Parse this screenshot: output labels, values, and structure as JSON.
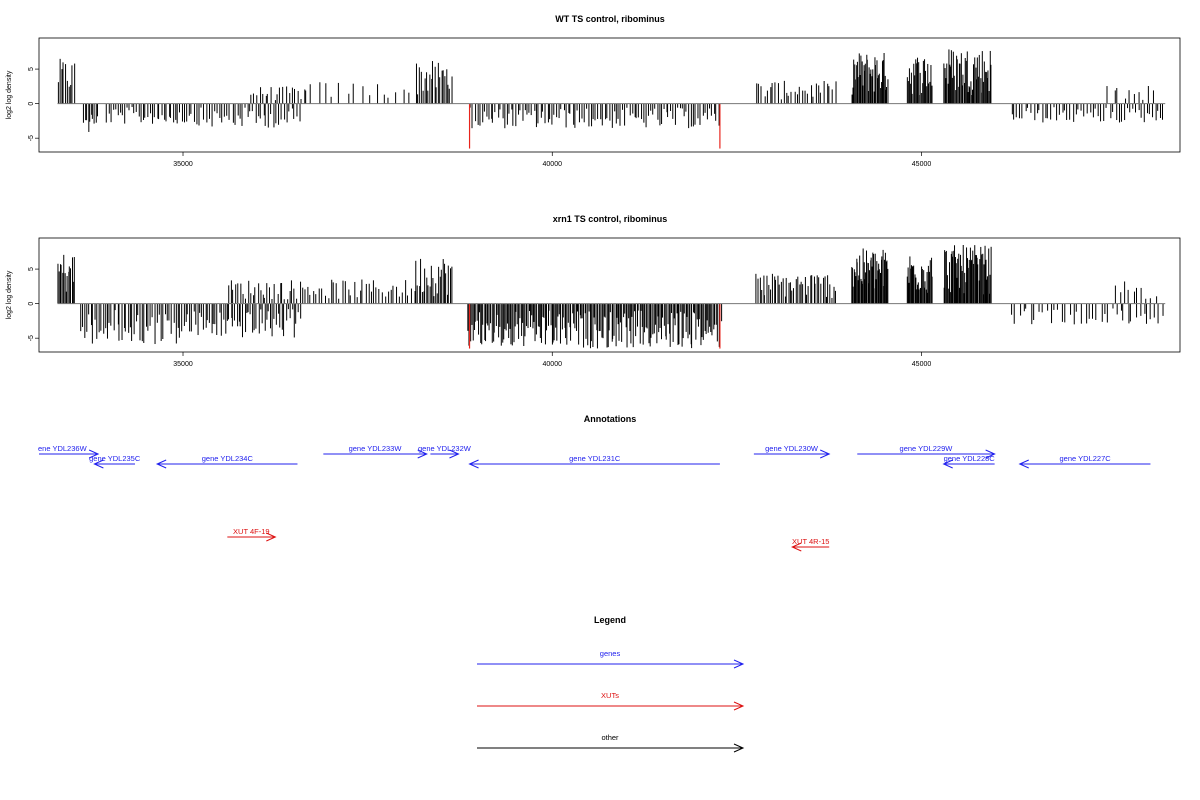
{
  "chart_data": [
    {
      "type": "bar",
      "title": "WT TS control, ribominus",
      "ylabel": "log2 log density",
      "xlabel": "",
      "xlim": [
        33050,
        48500
      ],
      "ylim": [
        -7,
        9.5
      ],
      "xticks": [
        35000,
        40000,
        45000
      ],
      "xtick_labels": [
        "35000",
        "40000",
        "45000"
      ],
      "yticks": [
        -5,
        0,
        5
      ],
      "ytick_labels": [
        "-5",
        "0",
        "5"
      ],
      "baseline": 0,
      "line_extent": [
        33300,
        48300
      ],
      "bar_color": "#000000",
      "red_markers": [
        {
          "x": 38880,
          "y": -6.5,
          "color": "#e8241c"
        },
        {
          "x": 42270,
          "y": -6.5,
          "color": "#e8241c"
        }
      ],
      "segments": [
        {
          "x0": 33300,
          "x1": 33540,
          "n": 10,
          "sign": 1,
          "max": 6.5
        },
        {
          "x0": 33650,
          "x1": 33850,
          "n": 10,
          "sign": -1,
          "max": 4.5
        },
        {
          "x0": 33950,
          "x1": 35200,
          "n": 40,
          "sign": -1,
          "max": 3.0
        },
        {
          "x0": 35200,
          "x1": 36600,
          "n": 40,
          "sign": -1,
          "max": 3.5
        },
        {
          "x0": 35900,
          "x1": 36700,
          "n": 20,
          "sign": 1,
          "max": 2.5
        },
        {
          "x0": 36700,
          "x1": 38150,
          "n": 15,
          "sign": 1,
          "max": 3.2
        },
        {
          "x0": 38150,
          "x1": 38650,
          "n": 22,
          "sign": 1,
          "max": 6.2
        },
        {
          "x0": 38880,
          "x1": 42270,
          "n": 110,
          "sign": -1,
          "max": 3.6
        },
        {
          "x0": 42750,
          "x1": 43850,
          "n": 30,
          "sign": 1,
          "max": 3.3
        },
        {
          "x0": 44050,
          "x1": 44550,
          "n": 40,
          "sign": 1,
          "max": 7.5
        },
        {
          "x0": 44800,
          "x1": 45150,
          "n": 25,
          "sign": 1,
          "max": 7.2
        },
        {
          "x0": 45300,
          "x1": 45950,
          "n": 50,
          "sign": 1,
          "max": 8.2
        },
        {
          "x0": 46200,
          "x1": 48300,
          "n": 55,
          "sign": -1,
          "max": 2.8
        },
        {
          "x0": 47500,
          "x1": 48200,
          "n": 10,
          "sign": 1,
          "max": 2.6
        }
      ]
    },
    {
      "type": "bar",
      "title": "xrn1 TS control, ribominus",
      "ylabel": "log2 log density",
      "xlabel": "",
      "xlim": [
        33050,
        48500
      ],
      "ylim": [
        -7,
        9.5
      ],
      "xticks": [
        35000,
        40000,
        45000
      ],
      "xtick_labels": [
        "35000",
        "40000",
        "45000"
      ],
      "yticks": [
        -5,
        0,
        5
      ],
      "ytick_labels": [
        "-5",
        "0",
        "5"
      ],
      "baseline": 0,
      "line_extent": [
        33300,
        48300
      ],
      "bar_color": "#000000",
      "red_markers": [
        {
          "x": 38880,
          "y": -6.5,
          "color": "#e8241c"
        },
        {
          "x": 42270,
          "y": -6.5,
          "color": "#e8241c"
        }
      ],
      "segments": [
        {
          "x0": 33300,
          "x1": 33540,
          "n": 15,
          "sign": 1,
          "max": 7.5
        },
        {
          "x0": 33600,
          "x1": 35000,
          "n": 50,
          "sign": -1,
          "max": 6.0
        },
        {
          "x0": 35000,
          "x1": 36600,
          "n": 60,
          "sign": -1,
          "max": 5.0
        },
        {
          "x0": 35600,
          "x1": 36600,
          "n": 30,
          "sign": 1,
          "max": 3.5
        },
        {
          "x0": 36600,
          "x1": 38150,
          "n": 40,
          "sign": 1,
          "max": 3.5
        },
        {
          "x0": 38150,
          "x1": 38650,
          "n": 25,
          "sign": 1,
          "max": 7.0
        },
        {
          "x0": 38850,
          "x1": 42300,
          "n": 200,
          "sign": -1,
          "max": 6.5
        },
        {
          "x0": 42750,
          "x1": 43850,
          "n": 45,
          "sign": 1,
          "max": 4.5
        },
        {
          "x0": 44050,
          "x1": 44550,
          "n": 45,
          "sign": 1,
          "max": 8.0
        },
        {
          "x0": 44800,
          "x1": 45150,
          "n": 30,
          "sign": 1,
          "max": 7.5
        },
        {
          "x0": 45300,
          "x1": 45950,
          "n": 55,
          "sign": 1,
          "max": 8.5
        },
        {
          "x0": 46200,
          "x1": 48300,
          "n": 40,
          "sign": -1,
          "max": 3.0
        },
        {
          "x0": 47600,
          "x1": 48200,
          "n": 10,
          "sign": 1,
          "max": 3.5
        }
      ]
    }
  ],
  "annotations": {
    "title": "Annotations",
    "genes": [
      {
        "label": "ene YDL236W",
        "x0": 33050,
        "x1": 33850,
        "row": 0,
        "dir": "right"
      },
      {
        "label": "gene YDL235C",
        "x0": 33800,
        "x1": 34350,
        "row": 1,
        "dir": "left"
      },
      {
        "label": "gene YDL234C",
        "x0": 34650,
        "x1": 36550,
        "row": 1,
        "dir": "left"
      },
      {
        "label": "gene YDL233W",
        "x0": 36900,
        "x1": 38300,
        "row": 0,
        "dir": "right"
      },
      {
        "label": "gene YDL232W",
        "x0": 38350,
        "x1": 38730,
        "row": 0,
        "dir": "right"
      },
      {
        "label": "gene YDL231C",
        "x0": 38880,
        "x1": 42270,
        "row": 1,
        "dir": "left"
      },
      {
        "label": "gene YDL230W",
        "x0": 42730,
        "x1": 43750,
        "row": 0,
        "dir": "right"
      },
      {
        "label": "gene YDL229W",
        "x0": 44130,
        "x1": 45990,
        "row": 0,
        "dir": "right"
      },
      {
        "label": "gene YDL228C",
        "x0": 45300,
        "x1": 45990,
        "row": 1,
        "dir": "left"
      },
      {
        "label": "gene YDL227C",
        "x0": 46330,
        "x1": 48100,
        "row": 1,
        "dir": "left"
      }
    ],
    "xuts": [
      {
        "label": "XUT 4F-19",
        "x0": 35600,
        "x1": 36250,
        "row": 0,
        "dir": "right"
      },
      {
        "label": "XUT 4R-15",
        "x0": 43250,
        "x1": 43750,
        "row": 1,
        "dir": "left"
      }
    ],
    "colors": {
      "genes": "#2020ee",
      "xuts": "#dd1111"
    }
  },
  "legend": {
    "title": "Legend",
    "items": [
      {
        "label": "genes",
        "color": "#2020ee"
      },
      {
        "label": "XUTs",
        "color": "#dd1111"
      },
      {
        "label": "other",
        "color": "#000000"
      }
    ]
  }
}
